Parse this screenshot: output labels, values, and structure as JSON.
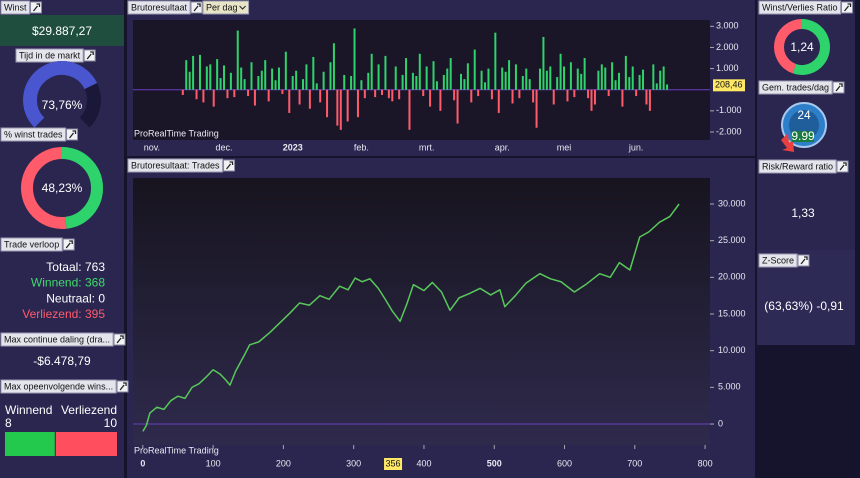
{
  "panels": {
    "winst": {
      "title": "Winst",
      "value": "$29.887,27"
    },
    "tijd": {
      "title": "Tijd in de markt",
      "value": 73.76,
      "label": "73,76%"
    },
    "winst_trades": {
      "title": "% winst trades",
      "value": 48.23,
      "label": "48,23%"
    },
    "trade_verloop": {
      "title": "Trade verloop",
      "rows": [
        {
          "label": "Totaal:",
          "value": 763
        },
        {
          "label": "Winnend:",
          "value": 368
        },
        {
          "label": "Neutraal:",
          "value": 0
        },
        {
          "label": "Verliezend:",
          "value": 395
        }
      ]
    },
    "max_daling": {
      "title": "Max continue daling (dra...",
      "value": "-$6.478,79"
    },
    "max_opeenvolgend": {
      "title": "Max opeenvolgende wins...",
      "winnend": {
        "label": "Winnend",
        "value": 8
      },
      "verliezend": {
        "label": "Verliezend",
        "value": 10
      }
    },
    "wv_ratio": {
      "title": "Winst/Verlies Ratio",
      "value": 1.24,
      "label": "1,24"
    },
    "gem_trades": {
      "title": "Gem. trades/dag",
      "icon_label": "24",
      "value": 9.99
    },
    "risk_reward": {
      "title": "Risk/Reward ratio",
      "value": "1,33"
    },
    "z_score": {
      "title": "Z-Score",
      "value": "(63,63%) -0,91"
    }
  },
  "chart_data": [
    {
      "type": "bar",
      "title": "Brutoresultaat",
      "period": "Per dag",
      "watermark": "ProRealTime Trading",
      "categories": [
        null,
        null,
        null,
        null,
        null,
        "nov.",
        null,
        null,
        null,
        null,
        null,
        null,
        null,
        null,
        null,
        null,
        null,
        null,
        null,
        null,
        null,
        null,
        null,
        null,
        null,
        null,
        "dec.",
        null,
        null,
        null,
        null,
        null,
        null,
        null,
        null,
        null,
        null,
        null,
        null,
        null,
        null,
        null,
        null,
        null,
        null,
        null,
        "2023",
        null,
        null,
        null,
        null,
        null,
        null,
        null,
        null,
        null,
        null,
        null,
        null,
        null,
        null,
        null,
        null,
        null,
        null,
        null,
        "feb.",
        null,
        null,
        null,
        null,
        null,
        null,
        null,
        null,
        null,
        null,
        null,
        null,
        null,
        null,
        null,
        null,
        null,
        null,
        "mrt.",
        null,
        null,
        null,
        null,
        null,
        null,
        null,
        null,
        null,
        null,
        null,
        null,
        null,
        null,
        null,
        null,
        null,
        null,
        null,
        null,
        null,
        "apr.",
        null,
        null,
        null,
        null,
        null,
        null,
        null,
        null,
        null,
        null,
        null,
        null,
        null,
        null,
        null,
        null,
        null,
        "mei",
        null,
        null,
        null,
        null,
        null,
        null,
        null,
        null,
        null,
        null,
        null,
        null,
        null,
        null,
        null,
        null,
        null,
        null,
        null,
        null,
        "jun.",
        null,
        null,
        null,
        null,
        null,
        null,
        null,
        null,
        null,
        null,
        null,
        null,
        null,
        null,
        null,
        null,
        null,
        null,
        null,
        null,
        null
      ],
      "values": [
        null,
        null,
        null,
        null,
        null,
        null,
        null,
        null,
        null,
        null,
        null,
        null,
        null,
        null,
        -250,
        1400,
        850,
        1600,
        -450,
        1650,
        -600,
        1100,
        1200,
        -800,
        1450,
        550,
        1150,
        -400,
        800,
        -350,
        2800,
        1050,
        500,
        -300,
        1300,
        -750,
        650,
        900,
        1400,
        -550,
        1000,
        450,
        1050,
        -200,
        1800,
        -1100,
        650,
        900,
        -700,
        500,
        1200,
        -900,
        1550,
        300,
        -600,
        850,
        -1300,
        1300,
        2200,
        -1700,
        -1900,
        700,
        -1500,
        650,
        2900,
        -1300,
        450,
        -400,
        800,
        1700,
        -350,
        1200,
        -250,
        1600,
        -400,
        -550,
        1100,
        -450,
        700,
        1500,
        -1900,
        800,
        650,
        1700,
        -300,
        1100,
        -800,
        1350,
        400,
        -1000,
        700,
        1000,
        1500,
        -500,
        -1600,
        750,
        500,
        1250,
        -600,
        1900,
        -300,
        900,
        350,
        1000,
        -450,
        2700,
        -1100,
        1050,
        850,
        1400,
        -650,
        1200,
        -400,
        650,
        1000,
        500,
        -600,
        -1800,
        1000,
        2500,
        900,
        1100,
        -700,
        600,
        1700,
        1100,
        -550,
        1300,
        -350,
        1000,
        750,
        1500,
        -400,
        -1000,
        -700,
        900,
        1200,
        1050,
        -300,
        1300,
        450,
        800,
        -800,
        1600,
        600,
        1100,
        -300,
        700,
        950,
        -700,
        -1000,
        1200,
        300,
        900,
        1100,
        250,
        null,
        null,
        null,
        null,
        null,
        null,
        null,
        null,
        null,
        null,
        null,
        null
      ],
      "colors": {
        "positive": "#2fd36b",
        "negative": "#ff5b6b"
      },
      "ylim": [
        -2380,
        3300
      ],
      "yticks": [
        {
          "value": 3000,
          "label": "3.000"
        },
        {
          "value": 2000,
          "label": "2.000"
        },
        {
          "value": 1000,
          "label": "1.000"
        },
        {
          "value": -1000,
          "label": "-1.000"
        },
        {
          "value": -2000,
          "label": "-2.000"
        }
      ],
      "value_marker": {
        "value": 208.46,
        "label": "208,46"
      }
    },
    {
      "type": "line",
      "title": "Brutoresultaat: Trades",
      "watermark": "ProRealTime Trading",
      "color": "#58c85a",
      "x": [
        0,
        5,
        10,
        20,
        30,
        40,
        50,
        60,
        70,
        80,
        90,
        100,
        110,
        118,
        124,
        132,
        145,
        152,
        165,
        181,
        195,
        210,
        223,
        237,
        252,
        265,
        280,
        292,
        302,
        312,
        323,
        335,
        345,
        355,
        366,
        375,
        385,
        400,
        412,
        425,
        437,
        450,
        465,
        480,
        495,
        508,
        515,
        530,
        545,
        565,
        580,
        595,
        614,
        630,
        650,
        665,
        678,
        693,
        707,
        720,
        735,
        750,
        763
      ],
      "values": [
        -1000,
        -200,
        1500,
        2300,
        2000,
        3200,
        3800,
        3500,
        5000,
        5500,
        6400,
        7400,
        6800,
        6000,
        5300,
        7200,
        9500,
        10800,
        11200,
        12500,
        13800,
        15200,
        16500,
        16200,
        17500,
        17000,
        18800,
        18300,
        19900,
        19400,
        19800,
        18500,
        17000,
        15400,
        14000,
        16200,
        19000,
        18200,
        19300,
        18000,
        15500,
        17200,
        17800,
        18500,
        17600,
        18300,
        16000,
        17500,
        19200,
        20500,
        19800,
        19400,
        18000,
        19000,
        20500,
        20000,
        22000,
        21000,
        25500,
        26200,
        27500,
        28300,
        30000
      ],
      "xlim": [
        -14,
        807
      ],
      "ylim": [
        -2860,
        33545
      ],
      "xticks": [
        0,
        100,
        200,
        300,
        400,
        500,
        600,
        700,
        800
      ],
      "yticks": [
        0,
        {
          "value": 5000,
          "label": "5.000"
        },
        {
          "value": 10000,
          "label": "10.000"
        },
        {
          "value": 15000,
          "label": "15.000"
        },
        {
          "value": 20000,
          "label": "20.000"
        },
        {
          "value": 25000,
          "label": "25.000"
        },
        {
          "value": 30000,
          "label": "30.000"
        }
      ],
      "x_marker": {
        "value": 356,
        "label": "356"
      }
    }
  ]
}
